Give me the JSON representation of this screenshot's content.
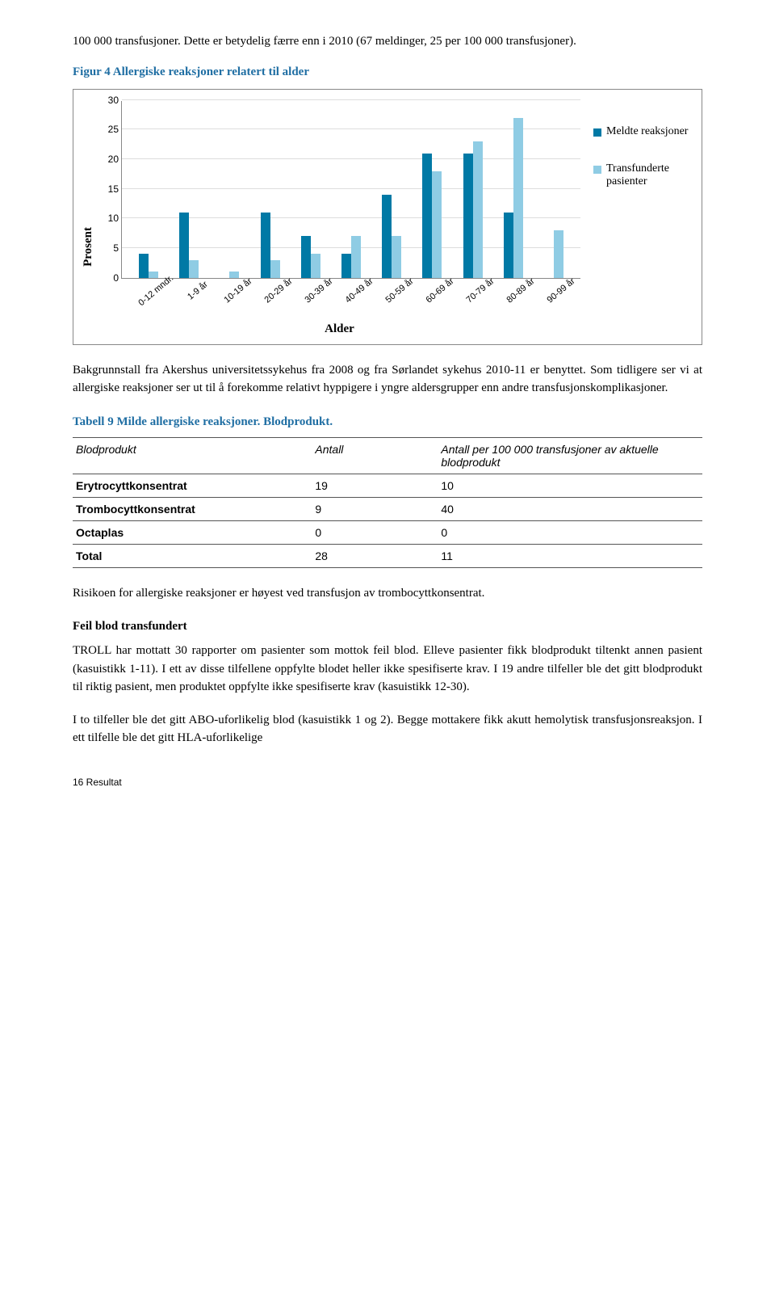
{
  "intro_para": "100 000 transfusjoner. Dette er betydelig færre enn i 2010 (67 meldinger, 25 per 100 000 transfusjoner).",
  "figure_title": "Figur 4 Allergiske reaksjoner relatert til alder",
  "chart": {
    "type": "grouped-bar",
    "y_label": "Prosent",
    "x_label": "Alder",
    "ylim_max": 30,
    "ytick_step": 5,
    "yticks": [
      0,
      5,
      10,
      15,
      20,
      25,
      30
    ],
    "grid_color": "#dddddd",
    "axis_color": "#888888",
    "series": [
      {
        "name": "Meldte reaksjoner",
        "color": "#0079a5"
      },
      {
        "name": "Transfunderte pasienter",
        "color": "#8fcce4"
      }
    ],
    "categories": [
      "0-12 mndr.",
      "1-9 år",
      "10-19 år",
      "20-29 år",
      "30-39 år",
      "40-49 år",
      "50-59 år",
      "60-69 år",
      "70-79 år",
      "80-89 år",
      "90-99 år"
    ],
    "values_a": [
      4,
      11,
      0,
      11,
      7,
      4,
      14,
      21,
      21,
      11,
      0
    ],
    "values_b": [
      1,
      3,
      1,
      3,
      4,
      7,
      7,
      18,
      23,
      27,
      8
    ]
  },
  "bg_para": "Bakgrunnstall fra Akershus universitetssykehus fra 2008 og fra Sørlandet sykehus 2010-11 er benyttet. Som tidligere ser vi at allergiske reaksjoner ser ut til å forekomme relativt hyppigere i yngre aldersgrupper enn andre transfusjonskomplikasjoner.",
  "table_title": "Tabell 9 Milde allergiske reaksjoner. Blodprodukt.",
  "table": {
    "columns": [
      "Blodprodukt",
      "Antall",
      "Antall per 100 000 transfusjoner av aktuelle blodprodukt"
    ],
    "rows": [
      [
        "Erytrocyttkonsentrat",
        "19",
        "10"
      ],
      [
        "Trombocyttkonsentrat",
        "9",
        "40"
      ],
      [
        "Octaplas",
        "0",
        "0"
      ],
      [
        "Total",
        "28",
        "11"
      ]
    ],
    "col_widths": [
      "38%",
      "20%",
      "42%"
    ]
  },
  "risk_para": "Risikoen for allergiske reaksjoner er høyest ved transfusjon av trombocyttkonsentrat.",
  "section_heading": "Feil blod transfundert",
  "troll_para": "TROLL har mottatt 30 rapporter om pasienter som mottok feil blod. Elleve pasienter fikk blodprodukt tiltenkt annen pasient (kasuistikk 1-11). I ett av disse tilfellene oppfylte blodet heller ikke spesifiserte krav. I 19 andre tilfeller ble det gitt blodprodukt til riktig pasient, men produktet oppfylte ikke spesifiserte krav (kasuistikk 12-30).",
  "abo_para": "I to tilfeller ble det gitt ABO-uforlikelig blod (kasuistikk 1 og 2). Begge mottakere fikk akutt hemolytisk transfusjonsreaksjon. I ett tilfelle ble det gitt HLA-uforlikelige",
  "footer": "16 Resultat"
}
